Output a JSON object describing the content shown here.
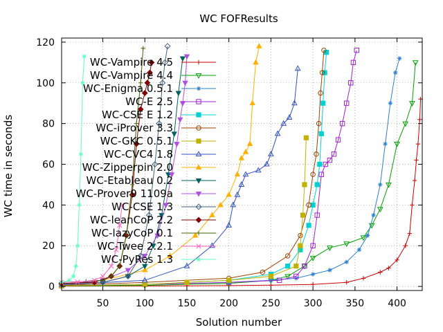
{
  "chart_data": {
    "type": "line",
    "title": "WC FOFResults",
    "xlabel": "Solution number",
    "ylabel": "WC time in seconds",
    "xlim": [
      1,
      430
    ],
    "ylim": [
      -2,
      122
    ],
    "xticks": [
      50,
      100,
      150,
      200,
      250,
      300,
      350,
      400
    ],
    "yticks": [
      0,
      20,
      40,
      60,
      80,
      100,
      120
    ],
    "grid": true,
    "legend_position": "top-left",
    "series": [
      {
        "name": "WC-Vampire 4.5",
        "color": "#cc0000",
        "marker": "plus",
        "x": [
          1,
          50,
          100,
          150,
          200,
          250,
          300,
          340,
          360,
          380,
          390,
          400,
          410,
          415,
          418,
          421,
          423,
          425,
          427,
          428
        ],
        "y": [
          0.1,
          0.2,
          0.2,
          0.3,
          0.4,
          0.6,
          1,
          2,
          4,
          7,
          9,
          13,
          20,
          26,
          40,
          52,
          62,
          70,
          82,
          92
        ]
      },
      {
        "name": "WC-Vampire 4.4",
        "color": "#00a000",
        "marker": "triangle-down-open",
        "x": [
          1,
          100,
          200,
          250,
          270,
          290,
          300,
          320,
          340,
          360,
          370,
          380,
          390,
          400,
          410,
          418,
          422
        ],
        "y": [
          0.2,
          0.5,
          1.5,
          3,
          5,
          10,
          14,
          19,
          21,
          24,
          30,
          38,
          50,
          70,
          80,
          90,
          110
        ]
      },
      {
        "name": "WC-Enigma 0.5.1",
        "color": "#2a7fd4",
        "marker": "asterisk",
        "x": [
          1,
          100,
          200,
          250,
          280,
          300,
          320,
          340,
          355,
          365,
          372,
          380,
          386,
          392,
          398,
          403
        ],
        "y": [
          0.3,
          1,
          2,
          3,
          4,
          6,
          8,
          12,
          18,
          25,
          35,
          50,
          70,
          90,
          105,
          112
        ]
      },
      {
        "name": "WC-E 2.5",
        "color": "#a020d0",
        "marker": "square-open",
        "x": [
          1,
          100,
          200,
          260,
          280,
          290,
          300,
          305,
          310,
          315,
          320,
          325,
          330,
          335,
          340,
          345,
          348,
          352
        ],
        "y": [
          0.3,
          1,
          2,
          3,
          5,
          10,
          20,
          35,
          55,
          60,
          62,
          65,
          72,
          80,
          90,
          100,
          110,
          116
        ]
      },
      {
        "name": "WC-CSE E 1.2",
        "color": "#00d0d0",
        "marker": "square",
        "x": [
          1,
          100,
          200,
          250,
          270,
          285,
          295,
          300,
          305,
          308,
          310,
          312,
          314,
          316
        ],
        "y": [
          0.4,
          1,
          3,
          6,
          10,
          18,
          30,
          40,
          50,
          60,
          75,
          90,
          105,
          115
        ]
      },
      {
        "name": "WC-iProver 3.3",
        "color": "#a04000",
        "marker": "circle-open",
        "x": [
          1,
          100,
          200,
          240,
          270,
          285,
          295,
          300,
          304,
          307,
          309,
          311,
          313
        ],
        "y": [
          0.5,
          2,
          4,
          7,
          15,
          25,
          40,
          55,
          65,
          80,
          95,
          105,
          116
        ]
      },
      {
        "name": "WC-GKC 0.5.1",
        "color": "#c0b000",
        "marker": "square",
        "x": [
          1,
          100,
          150,
          200,
          250,
          280,
          285,
          288,
          290,
          292
        ],
        "y": [
          0.3,
          1,
          2,
          3,
          5,
          10,
          20,
          35,
          50,
          73
        ]
      },
      {
        "name": "WC-CVC4 1.8",
        "color": "#3050c0",
        "marker": "triangle-open",
        "x": [
          1,
          100,
          150,
          180,
          200,
          205,
          210,
          215,
          220,
          235,
          245,
          250,
          258,
          265,
          272,
          278,
          282
        ],
        "y": [
          0.8,
          3,
          10,
          20,
          30,
          40,
          45,
          50,
          55,
          57,
          60,
          65,
          75,
          80,
          83,
          90,
          107
        ]
      },
      {
        "name": "WC-Zipperpin 2.0",
        "color": "#ffb000",
        "marker": "triangle",
        "x": [
          1,
          50,
          100,
          130,
          160,
          180,
          190,
          200,
          210,
          215,
          220,
          225,
          228,
          232,
          236
        ],
        "y": [
          1,
          3,
          8,
          15,
          25,
          35,
          40,
          45,
          55,
          63,
          66,
          70,
          90,
          110,
          118
        ]
      },
      {
        "name": "WC-Etableau 0.2",
        "color": "#006060",
        "marker": "triangle-down",
        "x": [
          1,
          50,
          80,
          100,
          110,
          120,
          128,
          135,
          140,
          145
        ],
        "y": [
          1,
          2,
          5,
          10,
          20,
          35,
          55,
          75,
          95,
          112
        ]
      },
      {
        "name": "WC-Prover9 1109a",
        "color": "#b050e0",
        "marker": "triangle-down",
        "x": [
          1,
          50,
          80,
          100,
          115,
          125,
          132,
          138,
          142,
          145,
          148,
          150
        ],
        "y": [
          1,
          3,
          8,
          15,
          25,
          40,
          55,
          70,
          82,
          90,
          100,
          113
        ]
      },
      {
        "name": "WC-CSE 1.3",
        "color": "#406080",
        "marker": "diamond-open",
        "x": [
          1,
          50,
          80,
          95,
          105,
          112,
          117,
          121,
          124,
          127
        ],
        "y": [
          1,
          2,
          5,
          15,
          35,
          60,
          80,
          100,
          110,
          118
        ]
      },
      {
        "name": "WC-leanCoP 2.2",
        "color": "#800000",
        "marker": "diamond",
        "x": [
          1,
          40,
          60,
          70,
          78,
          85,
          90,
          95,
          100,
          103,
          106,
          108
        ],
        "y": [
          1.5,
          2,
          5,
          10,
          25,
          45,
          70,
          87,
          95,
          100,
          105,
          110
        ]
      },
      {
        "name": "WC-lazyCoP 0.1",
        "color": "#406000",
        "marker": "plus",
        "x": [
          1,
          30,
          50,
          60,
          70,
          78,
          85,
          90,
          95,
          98
        ],
        "y": [
          2,
          2.5,
          3,
          5,
          10,
          25,
          50,
          80,
          100,
          117
        ]
      },
      {
        "name": "WC-Twee 2.2.1",
        "color": "#ff60c0",
        "marker": "cross",
        "x": [
          1,
          20,
          40,
          50,
          60,
          66,
          70,
          73
        ],
        "y": [
          2,
          2.2,
          3,
          5,
          10,
          18,
          30,
          40
        ]
      },
      {
        "name": "WC-PyRes 1.3",
        "color": "#60ffc0",
        "marker": "asterisk",
        "x": [
          1,
          10,
          15,
          18,
          20,
          22,
          24,
          26,
          28
        ],
        "y": [
          2,
          3,
          5,
          10,
          20,
          40,
          65,
          100,
          113
        ]
      }
    ]
  }
}
